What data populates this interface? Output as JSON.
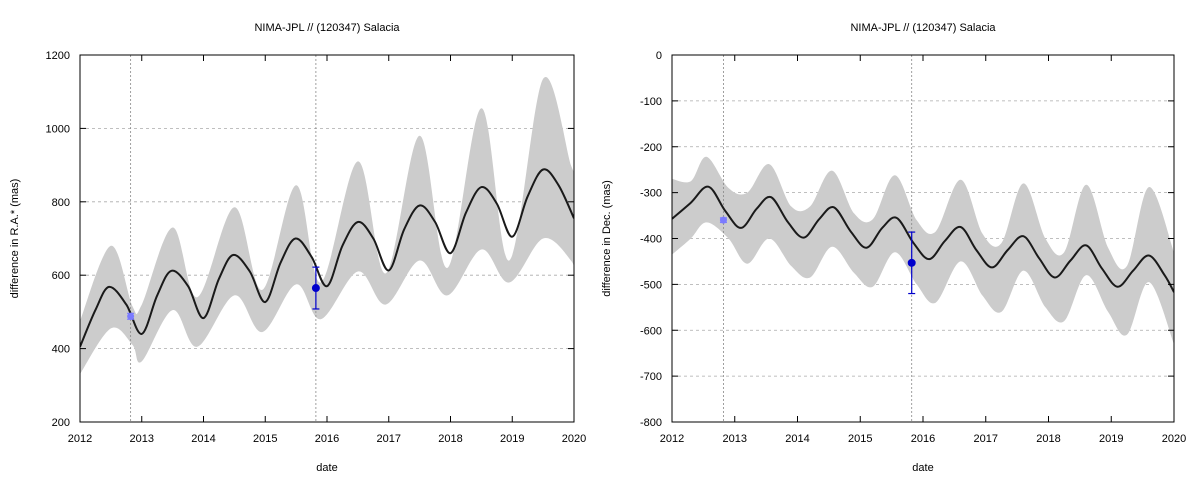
{
  "chart_data": [
    {
      "type": "line",
      "title": "NIMA-JPL // (120347) Salacia",
      "xlabel": "date",
      "ylabel": "difference in R.A.* (mas)",
      "xlim": [
        2012,
        2020
      ],
      "ylim": [
        200,
        1200
      ],
      "xticks": [
        "2012",
        "2013",
        "2014",
        "2015",
        "2016",
        "2017",
        "2018",
        "2019",
        "2020"
      ],
      "yticks": [
        "200",
        "400",
        "600",
        "800",
        "1000",
        "1200"
      ],
      "grid": "horizontal dashed",
      "series": [
        {
          "kind": "uncertainty band",
          "color": "#cccccc",
          "x": [
            2012.0,
            2012.5,
            2012.85,
            2013.0,
            2013.5,
            2013.9,
            2014.5,
            2014.95,
            2015.5,
            2015.9,
            2016.5,
            2016.95,
            2017.5,
            2017.95,
            2018.5,
            2018.95,
            2019.5,
            2019.95,
            2020.0
          ],
          "upper": [
            475,
            680,
            515,
            520,
            730,
            540,
            785,
            560,
            845,
            580,
            910,
            605,
            980,
            620,
            1055,
            640,
            1135,
            900,
            905
          ],
          "lower": [
            330,
            455,
            410,
            365,
            505,
            405,
            545,
            445,
            575,
            480,
            610,
            520,
            640,
            545,
            670,
            580,
            700,
            640,
            600
          ]
        },
        {
          "kind": "best-fit curve",
          "color": "#1a1a1a",
          "x": [
            2012.0,
            2012.25,
            2012.47,
            2012.75,
            2013.0,
            2013.25,
            2013.48,
            2013.75,
            2014.0,
            2014.25,
            2014.48,
            2014.75,
            2015.0,
            2015.25,
            2015.49,
            2015.75,
            2016.0,
            2016.25,
            2016.5,
            2016.75,
            2017.0,
            2017.25,
            2017.5,
            2017.75,
            2018.0,
            2018.25,
            2018.5,
            2018.75,
            2019.0,
            2019.25,
            2019.5,
            2019.75,
            2020.0
          ],
          "y": [
            405,
            505,
            568,
            520,
            440,
            545,
            612,
            570,
            483,
            590,
            655,
            610,
            527,
            635,
            700,
            650,
            570,
            680,
            745,
            700,
            613,
            725,
            790,
            745,
            660,
            770,
            840,
            795,
            705,
            815,
            888,
            845,
            755
          ]
        }
      ],
      "points": [
        {
          "x": 2012.82,
          "y": 488,
          "yerr": 8,
          "color": "#7b7bff",
          "size": "small"
        },
        {
          "x": 2015.82,
          "y": 565,
          "yerr": 57,
          "color": "#0000cc",
          "size": "large"
        }
      ],
      "vlines": [
        2012.82,
        2015.82
      ]
    },
    {
      "type": "line",
      "title": "NIMA-JPL // (120347) Salacia",
      "xlabel": "date",
      "ylabel": "difference in Dec. (mas)",
      "xlim": [
        2012,
        2020
      ],
      "ylim": [
        -800,
        0
      ],
      "xticks": [
        "2012",
        "2013",
        "2014",
        "2015",
        "2016",
        "2017",
        "2018",
        "2019",
        "2020"
      ],
      "yticks": [
        "0",
        "-100",
        "-200",
        "-300",
        "-400",
        "-500",
        "-600",
        "-700",
        "-800"
      ],
      "grid": "horizontal dashed",
      "series": [
        {
          "kind": "uncertainty band",
          "color": "#cccccc",
          "x": [
            2012.0,
            2012.3,
            2012.55,
            2012.9,
            2013.2,
            2013.55,
            2013.9,
            2014.2,
            2014.55,
            2014.9,
            2015.2,
            2015.55,
            2015.9,
            2016.2,
            2016.6,
            2016.95,
            2017.25,
            2017.6,
            2017.95,
            2018.25,
            2018.6,
            2018.95,
            2019.25,
            2019.6,
            2020.0
          ],
          "upper": [
            -270,
            -275,
            -222,
            -290,
            -300,
            -238,
            -330,
            -330,
            -252,
            -345,
            -358,
            -262,
            -360,
            -385,
            -272,
            -390,
            -410,
            -280,
            -400,
            -430,
            -283,
            -420,
            -460,
            -288,
            -430
          ],
          "lower": [
            -435,
            -400,
            -365,
            -400,
            -455,
            -400,
            -460,
            -485,
            -418,
            -475,
            -505,
            -430,
            -500,
            -540,
            -450,
            -525,
            -560,
            -470,
            -550,
            -580,
            -480,
            -560,
            -610,
            -495,
            -630
          ]
        },
        {
          "kind": "best-fit curve",
          "color": "#1a1a1a",
          "x": [
            2012.0,
            2012.3,
            2012.58,
            2012.85,
            2013.1,
            2013.35,
            2013.58,
            2013.85,
            2014.1,
            2014.35,
            2014.58,
            2014.85,
            2015.1,
            2015.35,
            2015.58,
            2015.85,
            2016.1,
            2016.35,
            2016.6,
            2016.85,
            2017.1,
            2017.35,
            2017.6,
            2017.85,
            2018.1,
            2018.35,
            2018.6,
            2018.85,
            2019.1,
            2019.35,
            2019.6,
            2019.85,
            2020.0
          ],
          "y": [
            -357,
            -322,
            -287,
            -340,
            -377,
            -335,
            -310,
            -365,
            -398,
            -357,
            -332,
            -385,
            -420,
            -377,
            -355,
            -410,
            -445,
            -405,
            -375,
            -425,
            -463,
            -425,
            -395,
            -443,
            -485,
            -448,
            -415,
            -465,
            -505,
            -470,
            -437,
            -480,
            -517
          ]
        }
      ],
      "points": [
        {
          "x": 2012.82,
          "y": -360,
          "yerr": 5,
          "color": "#7b7bff",
          "size": "small"
        },
        {
          "x": 2015.82,
          "y": -453,
          "yerr": 67,
          "color": "#0000cc",
          "size": "large"
        }
      ],
      "vlines": [
        2012.82,
        2015.82
      ]
    }
  ]
}
